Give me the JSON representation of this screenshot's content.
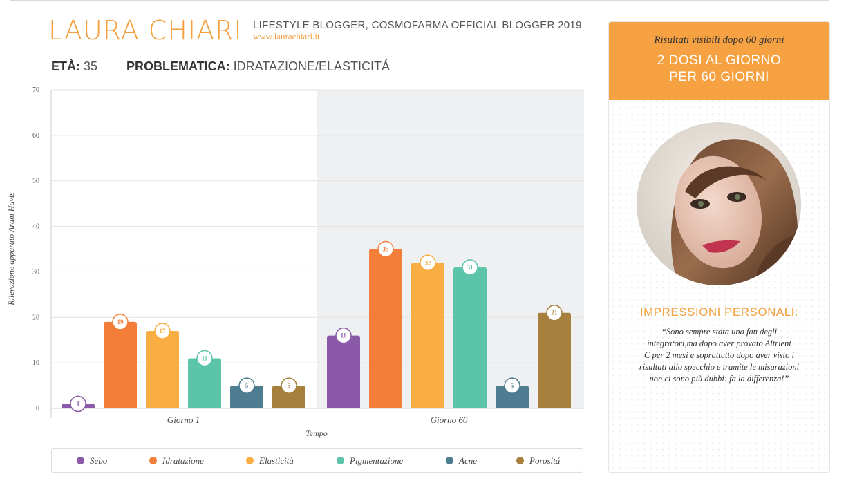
{
  "header": {
    "name": "LAURA CHIARI",
    "subtitle": "LIFESTYLE BLOGGER, COSMOFARMA OFFICIAL BLOGGER 2019",
    "website": "www.laurachiari.it",
    "age_label": "ETÀ:",
    "age_value": "35",
    "problem_label": "PROBLEMATICA:",
    "problem_value": "IDRATAZIONE/ELASTICITÁ"
  },
  "colors": {
    "accent": "#f4a03f",
    "panel_header": "#f6a142",
    "shaded_region": "#eef0f2"
  },
  "chart_data": {
    "type": "bar",
    "categories": [
      "Giorno 1",
      "Giorno 60"
    ],
    "series": [
      {
        "name": "Sebo",
        "color": "#8a5aa8",
        "values": [
          1,
          16
        ]
      },
      {
        "name": "Idratazione",
        "color": "#f27e3a",
        "values": [
          19,
          35
        ]
      },
      {
        "name": "Elasticità",
        "color": "#f8ae42",
        "values": [
          17,
          32
        ]
      },
      {
        "name": "Pigmentazione",
        "color": "#5cc5a9",
        "values": [
          11,
          31
        ]
      },
      {
        "name": "Acne",
        "color": "#4e7c90",
        "values": [
          5,
          5
        ]
      },
      {
        "name": "Porositá",
        "color": "#a8803e",
        "values": [
          5,
          21
        ]
      }
    ],
    "xlabel": "Tempo",
    "ylabel": "Rilevazione apparato Aram Huvis",
    "ylim": [
      0,
      70
    ],
    "yticks": [
      0,
      10,
      20,
      30,
      40,
      50,
      60,
      70
    ],
    "grid": true,
    "legend": "bottom"
  },
  "panel": {
    "header_italic": "Risultati visibili dopo 60 giorni",
    "header_line1": "2 DOSI AL GIORNO",
    "header_line2": "PER 60 GIORNI",
    "impressions_title": "IMPRESSIONI PERSONALI:",
    "quote_lines": [
      "“Sono sempre stata una fan degli",
      "integratori,ma dopo aver provato Altrient",
      "C per 2 mesi e soprattutto dopo aver visto i",
      "risultati allo specchio e tramite le misurazioni",
      "non ci sono più dubbi: fa la differenza!”"
    ]
  }
}
